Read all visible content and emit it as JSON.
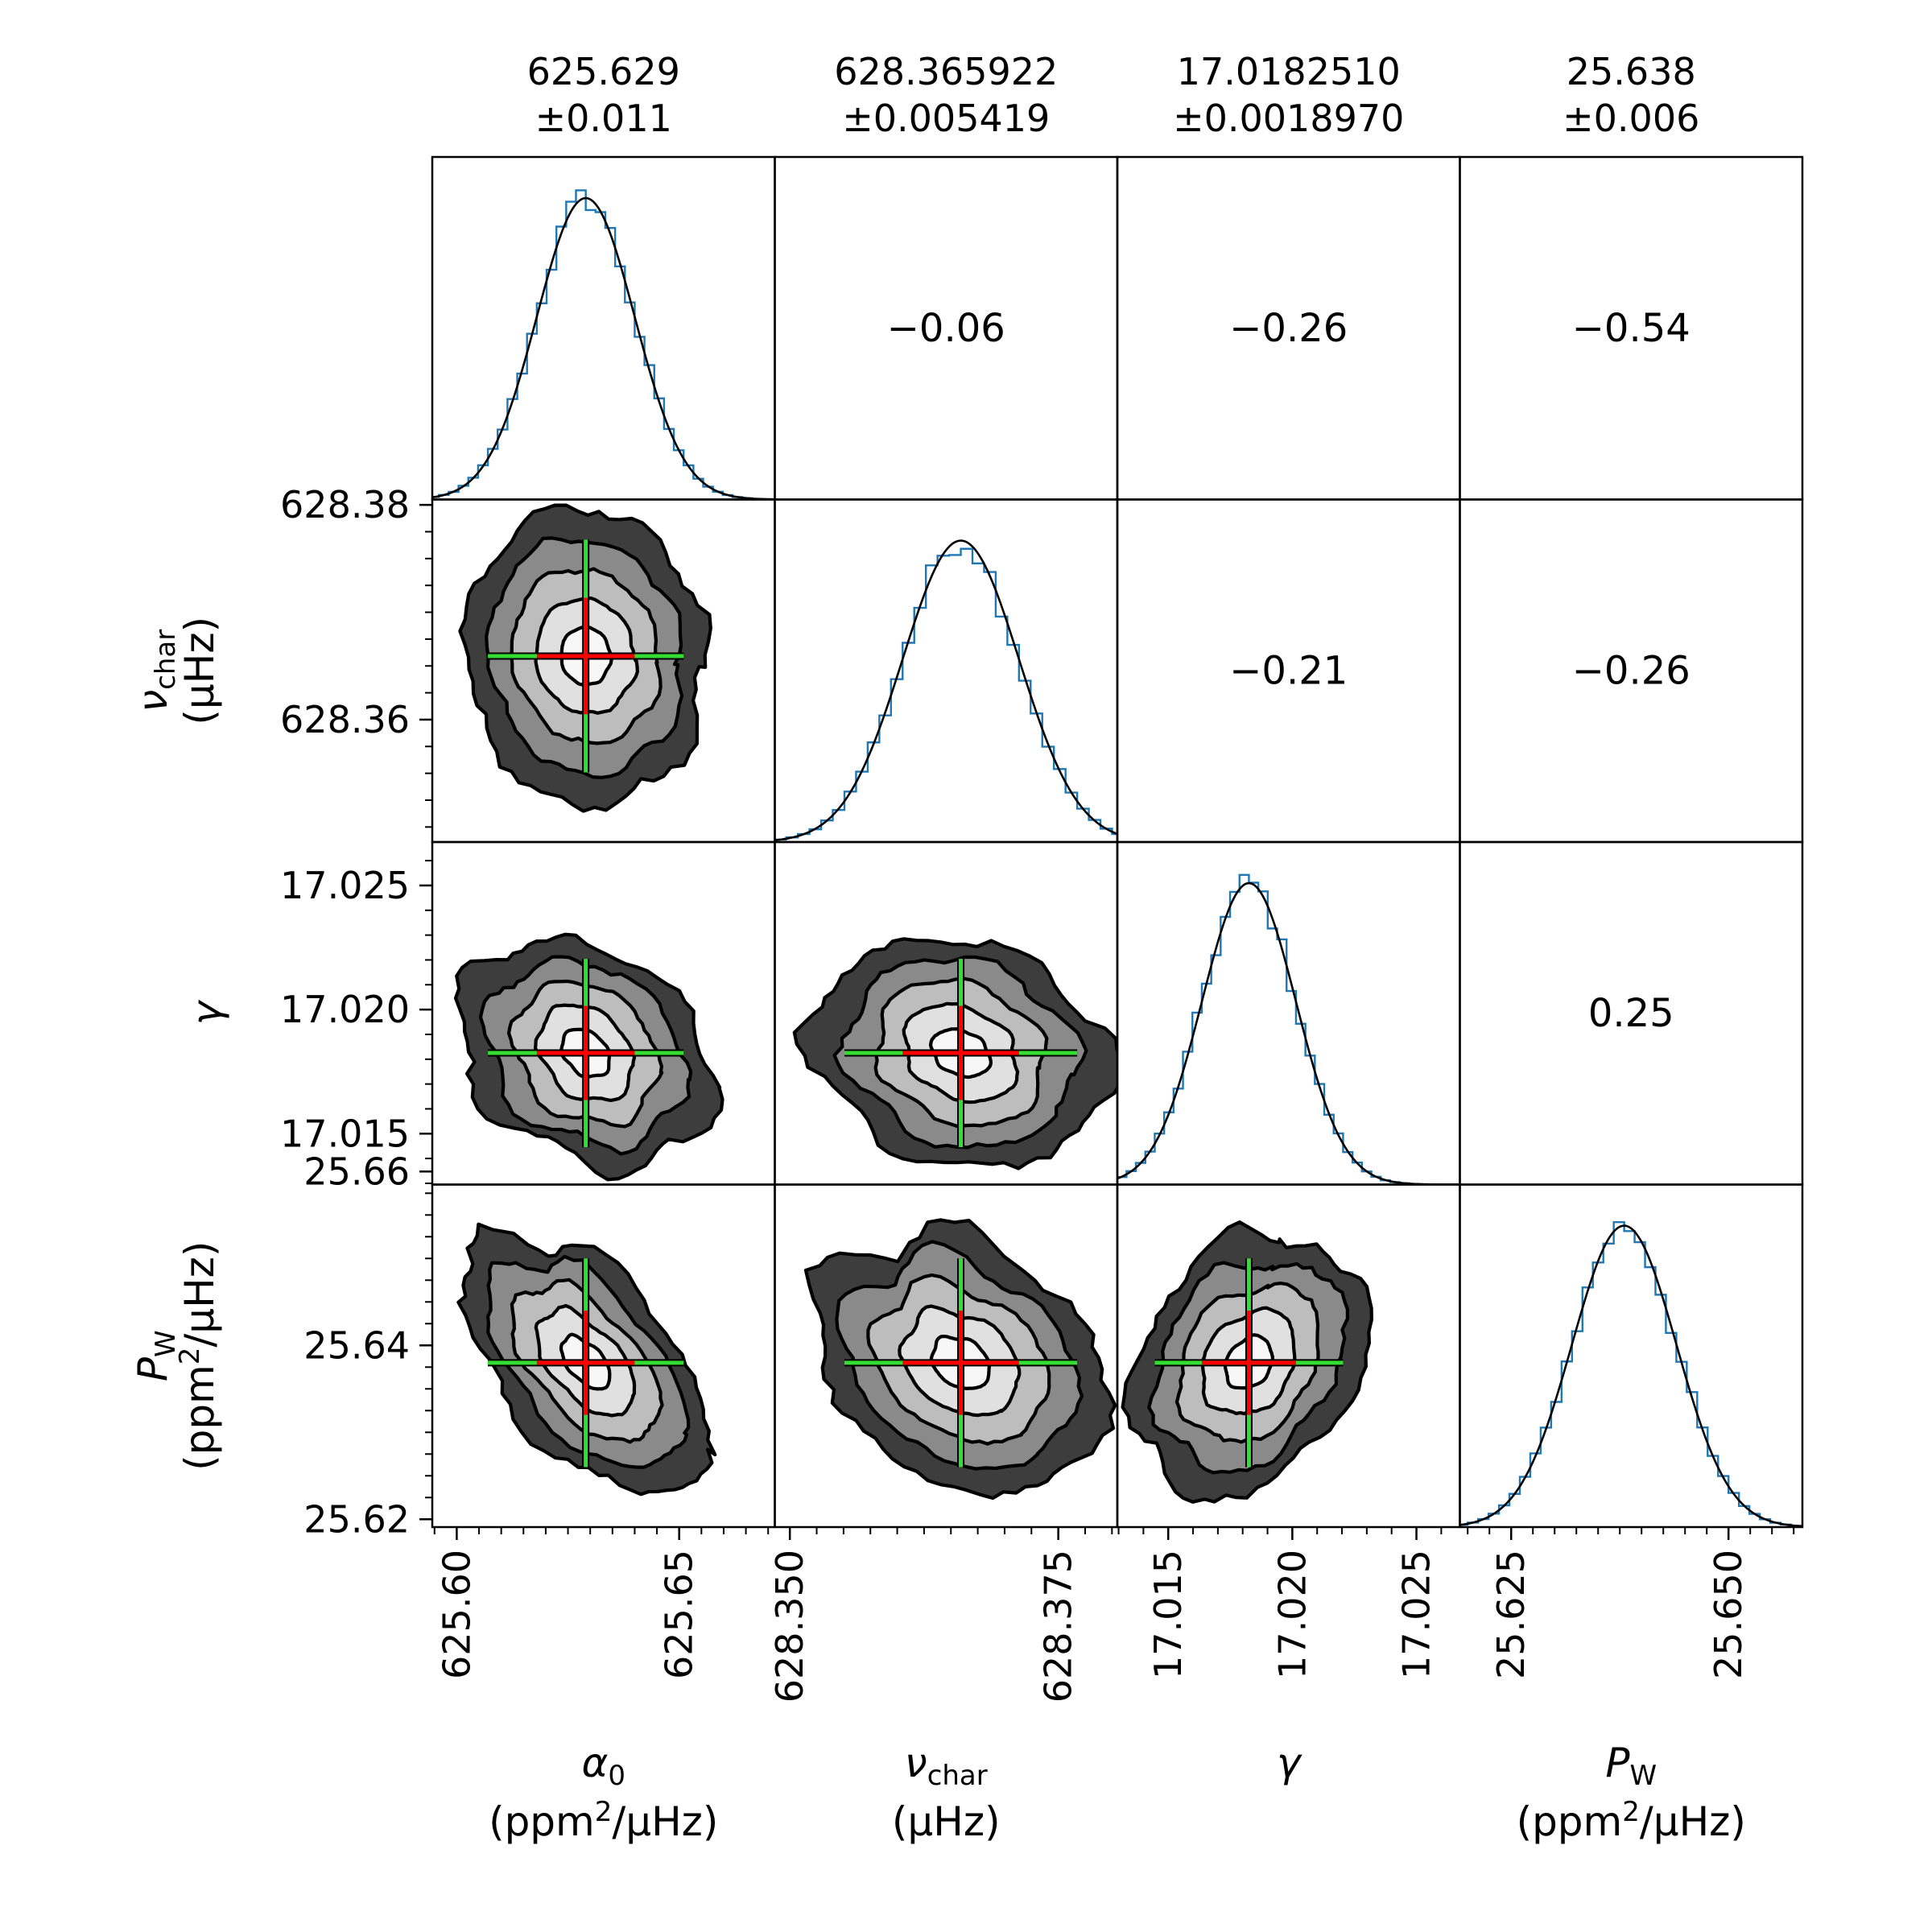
{
  "figure": {
    "kind": "corner plot",
    "params": [
      {
        "key": "alpha0",
        "symbol": "α",
        "sub": "0",
        "unit_pre": "(ppm",
        "unit_sup": "2",
        "unit_post": "/μHz)"
      },
      {
        "key": "nu_char",
        "symbol": "ν",
        "sub": "char",
        "unit_pre": "(μHz)",
        "unit_sup": "",
        "unit_post": ""
      },
      {
        "key": "gamma",
        "symbol": "γ",
        "sub": "",
        "unit_pre": "",
        "unit_sup": "",
        "unit_post": ""
      },
      {
        "key": "P_W",
        "symbol": "P",
        "sub": "W",
        "unit_pre": "(ppm",
        "unit_sup": "2",
        "unit_post": "/μHz)"
      }
    ],
    "column_headers": [
      {
        "value": "625.629",
        "error": "±0.011"
      },
      {
        "value": "628.365922",
        "error": "±0.005419"
      },
      {
        "value": "17.0182510",
        "error": "±0.0018970"
      },
      {
        "value": "25.638",
        "error": "±0.006"
      }
    ],
    "correlations": [
      {
        "row": 0,
        "col": 1,
        "text": "−0.06"
      },
      {
        "row": 0,
        "col": 2,
        "text": "−0.26"
      },
      {
        "row": 0,
        "col": 3,
        "text": "−0.54"
      },
      {
        "row": 1,
        "col": 2,
        "text": "−0.21"
      },
      {
        "row": 1,
        "col": 3,
        "text": "−0.26"
      },
      {
        "row": 2,
        "col": 3,
        "text": "0.25"
      }
    ],
    "colors": {
      "histogram": "#1f77b4",
      "gaussian_fit": "#000000",
      "contour_line": "#000000",
      "contour_fills": [
        "#f7f7f7",
        "#e0e0e0",
        "#bdbdbd",
        "#8a8a8a",
        "#3d3d3d"
      ],
      "error_bar_1sigma": "#ff0000",
      "error_bar_2sigma": "#33dd33"
    }
  },
  "chart_data": {
    "type": "corner",
    "params": [
      "α0",
      "νchar",
      "γ",
      "PW"
    ],
    "means": [
      625.629,
      628.365922,
      17.018251,
      25.638
    ],
    "sigmas": [
      0.011,
      0.005419,
      0.001897,
      0.006
    ],
    "correlation_matrix": [
      [
        1.0,
        -0.06,
        -0.26,
        -0.54
      ],
      [
        -0.06,
        1.0,
        -0.21,
        -0.26
      ],
      [
        -0.26,
        -0.21,
        1.0,
        0.25
      ],
      [
        -0.54,
        -0.26,
        0.25,
        1.0
      ]
    ],
    "axis_ranges": [
      [
        625.5945,
        625.6715
      ],
      [
        628.3486,
        628.3805
      ],
      [
        17.01295,
        17.02675
      ],
      [
        25.6191,
        25.6585
      ]
    ],
    "x_ticks": [
      {
        "values": [
          625.6,
          625.65
        ],
        "labels": [
          "625.60",
          "625.65"
        ]
      },
      {
        "values": [
          628.35,
          628.375
        ],
        "labels": [
          "628.350",
          "628.375"
        ]
      },
      {
        "values": [
          17.015,
          17.02,
          17.025
        ],
        "labels": [
          "17.015",
          "17.020",
          "17.025"
        ]
      },
      {
        "values": [
          25.625,
          25.65
        ],
        "labels": [
          "25.625",
          "25.650"
        ]
      }
    ],
    "y_ticks": [
      null,
      {
        "values": [
          628.38,
          628.36
        ],
        "labels": [
          "628.38",
          "628.36"
        ]
      },
      {
        "values": [
          17.025,
          17.02,
          17.015
        ],
        "labels": [
          "17.025",
          "17.020",
          "17.015"
        ]
      },
      {
        "values": [
          25.66,
          25.64,
          25.62
        ],
        "labels": [
          "25.66",
          "25.64",
          "25.62"
        ]
      }
    ],
    "contour_levels_sigma": [
      0.5,
      1.0,
      1.5,
      2.0,
      2.5
    ],
    "histogram_bins": 40,
    "error_bars_sigma": [
      1,
      2
    ]
  }
}
